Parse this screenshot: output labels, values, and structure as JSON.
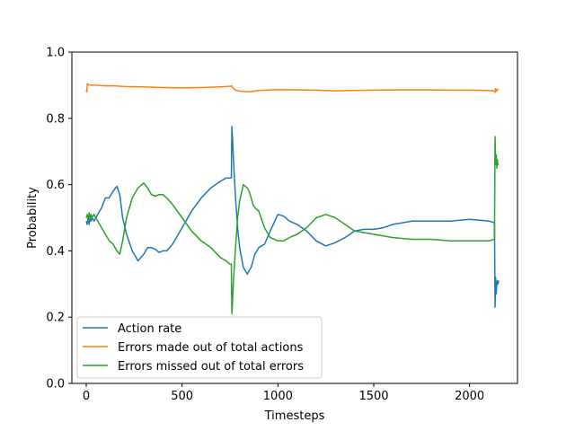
{
  "chart_data": {
    "type": "line",
    "xlabel": "Timesteps",
    "ylabel": "Probability",
    "xlim": [
      -75,
      2250
    ],
    "ylim": [
      0.0,
      1.0
    ],
    "xticks": [
      0,
      500,
      1000,
      1500,
      2000
    ],
    "yticks": [
      0.0,
      0.2,
      0.4,
      0.6,
      0.8,
      1.0
    ],
    "xtick_labels": [
      "0",
      "500",
      "1000",
      "1500",
      "2000"
    ],
    "ytick_labels": [
      "0.0",
      "0.2",
      "0.4",
      "0.6",
      "0.8",
      "1.0"
    ],
    "grid": false,
    "legend_position": "lower-left",
    "series": [
      {
        "name": "Action rate",
        "color": "#1f77b4",
        "x": [
          0,
          5,
          10,
          15,
          20,
          25,
          30,
          40,
          50,
          60,
          70,
          80,
          100,
          120,
          140,
          160,
          175,
          190,
          210,
          240,
          270,
          300,
          320,
          340,
          360,
          380,
          400,
          420,
          450,
          500,
          550,
          600,
          650,
          700,
          730,
          750,
          757,
          760,
          763,
          770,
          780,
          790,
          800,
          820,
          840,
          850,
          860,
          870,
          880,
          900,
          930,
          960,
          1000,
          1030,
          1060,
          1100,
          1150,
          1200,
          1250,
          1300,
          1350,
          1400,
          1450,
          1500,
          1550,
          1600,
          1700,
          1800,
          1900,
          2000,
          2100,
          2130,
          2133,
          2136,
          2139,
          2142,
          2145,
          2148,
          2152
        ],
        "y": [
          0.49,
          0.48,
          0.5,
          0.48,
          0.5,
          0.49,
          0.5,
          0.49,
          0.5,
          0.51,
          0.52,
          0.53,
          0.56,
          0.56,
          0.58,
          0.595,
          0.57,
          0.5,
          0.45,
          0.4,
          0.37,
          0.39,
          0.41,
          0.41,
          0.405,
          0.395,
          0.4,
          0.4,
          0.42,
          0.47,
          0.52,
          0.56,
          0.59,
          0.61,
          0.62,
          0.62,
          0.62,
          0.775,
          0.74,
          0.65,
          0.55,
          0.47,
          0.41,
          0.35,
          0.33,
          0.34,
          0.35,
          0.37,
          0.39,
          0.41,
          0.42,
          0.46,
          0.51,
          0.505,
          0.49,
          0.48,
          0.46,
          0.43,
          0.415,
          0.425,
          0.44,
          0.46,
          0.465,
          0.465,
          0.47,
          0.48,
          0.49,
          0.49,
          0.49,
          0.495,
          0.49,
          0.485,
          0.23,
          0.32,
          0.27,
          0.3,
          0.31,
          0.3,
          0.31
        ]
      },
      {
        "name": "Errors made out of total actions",
        "color": "#ff7f0e",
        "x": [
          0,
          3,
          6,
          10,
          20,
          50,
          100,
          150,
          200,
          300,
          400,
          500,
          600,
          700,
          755,
          760,
          765,
          770,
          780,
          800,
          850,
          900,
          1000,
          1100,
          1200,
          1300,
          1400,
          1500,
          1600,
          1700,
          1800,
          1900,
          2000,
          2100,
          2130,
          2133,
          2136,
          2140,
          2145,
          2150
        ],
        "y": [
          0.885,
          0.88,
          0.905,
          0.902,
          0.9,
          0.9,
          0.898,
          0.898,
          0.896,
          0.895,
          0.893,
          0.892,
          0.893,
          0.895,
          0.897,
          0.898,
          0.892,
          0.888,
          0.885,
          0.882,
          0.88,
          0.884,
          0.887,
          0.886,
          0.885,
          0.883,
          0.884,
          0.885,
          0.886,
          0.886,
          0.886,
          0.885,
          0.885,
          0.884,
          0.883,
          0.878,
          0.89,
          0.882,
          0.888,
          0.885
        ]
      },
      {
        "name": "Errors missed out of total errors",
        "color": "#2ca02c",
        "x": [
          0,
          5,
          10,
          15,
          20,
          25,
          30,
          40,
          50,
          60,
          70,
          80,
          100,
          120,
          140,
          160,
          175,
          190,
          210,
          240,
          270,
          300,
          320,
          340,
          360,
          380,
          400,
          420,
          450,
          500,
          550,
          600,
          650,
          700,
          730,
          750,
          757,
          760,
          763,
          770,
          780,
          790,
          800,
          820,
          840,
          850,
          860,
          870,
          880,
          900,
          930,
          960,
          1000,
          1030,
          1060,
          1100,
          1150,
          1200,
          1250,
          1300,
          1350,
          1400,
          1450,
          1500,
          1550,
          1600,
          1700,
          1800,
          1900,
          2000,
          2100,
          2130,
          2133,
          2136,
          2139,
          2142,
          2145,
          2148,
          2152
        ],
        "y": [
          0.5,
          0.51,
          0.49,
          0.515,
          0.5,
          0.51,
          0.5,
          0.51,
          0.5,
          0.49,
          0.48,
          0.47,
          0.45,
          0.43,
          0.42,
          0.4,
          0.39,
          0.43,
          0.5,
          0.56,
          0.59,
          0.605,
          0.59,
          0.57,
          0.565,
          0.57,
          0.57,
          0.56,
          0.54,
          0.5,
          0.46,
          0.43,
          0.41,
          0.38,
          0.37,
          0.36,
          0.36,
          0.21,
          0.25,
          0.33,
          0.42,
          0.5,
          0.55,
          0.6,
          0.59,
          0.58,
          0.56,
          0.54,
          0.53,
          0.52,
          0.47,
          0.44,
          0.43,
          0.43,
          0.44,
          0.45,
          0.47,
          0.5,
          0.51,
          0.5,
          0.48,
          0.46,
          0.455,
          0.45,
          0.445,
          0.44,
          0.435,
          0.435,
          0.43,
          0.43,
          0.43,
          0.435,
          0.745,
          0.66,
          0.69,
          0.65,
          0.675,
          0.66,
          0.66
        ]
      }
    ]
  }
}
